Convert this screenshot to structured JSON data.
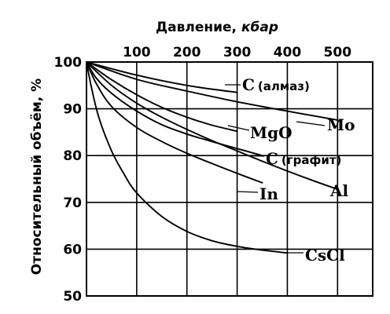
{
  "chart_data": {
    "type": "line",
    "title": "",
    "xlabel": "Давление, кбар",
    "xlabel_main": "Давление",
    "xlabel_unit": "кбар",
    "ylabel": "Относительный объём, %",
    "xlim": [
      0,
      570
    ],
    "ylim": [
      50,
      100
    ],
    "x_ticks": [
      100,
      200,
      300,
      400,
      500
    ],
    "y_ticks": [
      50,
      60,
      70,
      80,
      90,
      100
    ],
    "x_tick_labels": [
      "100",
      "200",
      "300",
      "400",
      "500"
    ],
    "y_tick_labels": [
      "50",
      "60",
      "70",
      "80",
      "90",
      "100"
    ],
    "grid": true,
    "series": [
      {
        "name": "C (алмаз)",
        "label_main": "C",
        "label_sub": "(алмаз)",
        "x": [
          0,
          100,
          200,
          300
        ],
        "y": [
          100,
          97.2,
          95,
          93.5
        ]
      },
      {
        "name": "Mo",
        "label_main": "Mo",
        "label_sub": "",
        "x": [
          0,
          100,
          200,
          300,
          400,
          500
        ],
        "y": [
          100,
          96.3,
          93.8,
          91.5,
          89.5,
          87.6
        ]
      },
      {
        "name": "MgO",
        "label_main": "MgO",
        "label_sub": "",
        "x": [
          0,
          50,
          100,
          150,
          200,
          250,
          300
        ],
        "y": [
          100,
          96.2,
          93,
          90.3,
          88.2,
          86.5,
          85.2
        ]
      },
      {
        "name": "C (графит)",
        "label_main": "C",
        "label_sub": "(графит)",
        "x": [
          0,
          20,
          50,
          100,
          150,
          200,
          250,
          300,
          350
        ],
        "y": [
          100,
          96.5,
          93.3,
          89.5,
          86.6,
          84.6,
          83,
          81.5,
          80
        ]
      },
      {
        "name": "Al",
        "label_main": "Al",
        "label_sub": "",
        "x": [
          0,
          50,
          100,
          150,
          200,
          250,
          300,
          350,
          400,
          450,
          500
        ],
        "y": [
          100,
          95,
          91.2,
          88.2,
          85.6,
          83.2,
          81,
          78.8,
          76.7,
          74.7,
          72.8
        ]
      },
      {
        "name": "In",
        "label_main": "In",
        "label_sub": "",
        "x": [
          0,
          20,
          50,
          100,
          150,
          200,
          250,
          300,
          350
        ],
        "y": [
          100,
          95.3,
          90.5,
          86,
          83,
          80.5,
          78.3,
          76.2,
          74.2
        ]
      },
      {
        "name": "CsCl",
        "label_main": "CsCl",
        "label_sub": "",
        "x": [
          0,
          10,
          25,
          50,
          75,
          100,
          150,
          200,
          250,
          300,
          350,
          400
        ],
        "y": [
          100,
          94.5,
          88,
          81,
          76,
          72,
          67,
          63.8,
          61.8,
          60.6,
          59.8,
          59.2
        ]
      }
    ]
  }
}
